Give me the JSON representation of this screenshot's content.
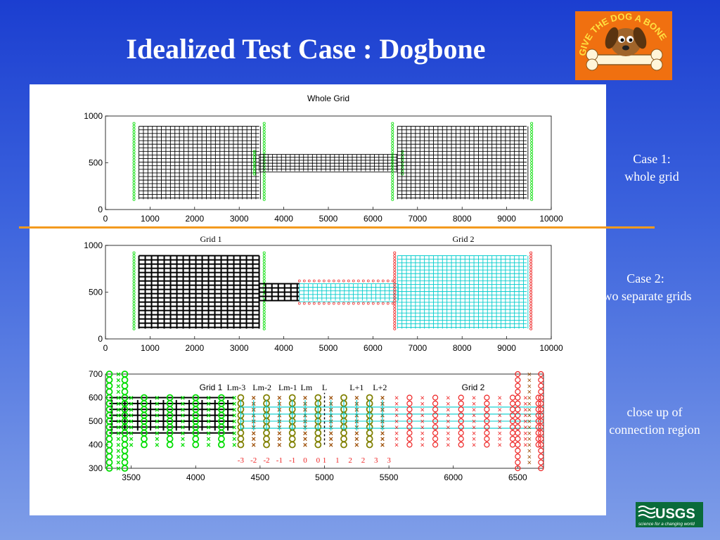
{
  "slide": {
    "title": "Idealized Test Case : Dogbone",
    "logo_text": "GIVE THE DOG A BONE",
    "usgs_text": "USGS",
    "usgs_tagline": "science for a changing world"
  },
  "notes": {
    "case1_line1": "Case 1:",
    "case1_line2": "whole grid",
    "case2_line1": "Case 2:",
    "case2_line2": "two separate grids",
    "closeup_line1": "close up of",
    "closeup_line2": "connection region"
  },
  "colors": {
    "green": "#00dd00",
    "red": "#ee2222",
    "cyan": "#00cccc",
    "olive": "#808000",
    "black": "#000000",
    "divider": "#f39a1e",
    "brown": "#9a4a00"
  },
  "chart_data": [
    {
      "type": "diagram",
      "title": "Whole Grid",
      "xlim": [
        0,
        10000
      ],
      "ylim": [
        0,
        1000
      ],
      "xticks": [
        0,
        1000,
        2000,
        3000,
        4000,
        5000,
        6000,
        7000,
        8000,
        9000,
        10000
      ],
      "yticks": [
        0,
        500,
        1000
      ],
      "blocks": [
        {
          "grid": "whole",
          "x": [
            750,
            3450
          ],
          "y": [
            110,
            890
          ]
        },
        {
          "grid": "whole",
          "x": [
            3450,
            6550
          ],
          "y": [
            410,
            590
          ]
        },
        {
          "grid": "whole",
          "x": [
            6550,
            9450
          ],
          "y": [
            110,
            890
          ]
        }
      ]
    },
    {
      "type": "diagram",
      "xlim": [
        0,
        10000
      ],
      "ylim": [
        0,
        1000
      ],
      "xticks": [
        0,
        1000,
        2000,
        3000,
        4000,
        5000,
        6000,
        7000,
        8000,
        9000,
        10000
      ],
      "yticks": [
        0,
        500,
        1000
      ],
      "grid1_label": "Grid 1",
      "grid2_label": "Grid 2",
      "blocks": [
        {
          "grid": "grid1",
          "x": [
            750,
            3450
          ],
          "y": [
            110,
            890
          ]
        },
        {
          "grid": "grid1",
          "x": [
            3450,
            4350
          ],
          "y": [
            410,
            590
          ]
        },
        {
          "grid": "grid2",
          "x": [
            4350,
            6550
          ],
          "y": [
            410,
            590
          ]
        },
        {
          "grid": "grid2",
          "x": [
            6550,
            9450
          ],
          "y": [
            110,
            890
          ]
        }
      ]
    },
    {
      "type": "diagram",
      "xlim": [
        3300,
        6700
      ],
      "ylim": [
        300,
        700
      ],
      "xticks": [
        3500,
        4000,
        4500,
        5000,
        5500,
        6000,
        6500
      ],
      "yticks": [
        300,
        400,
        500,
        600,
        700
      ],
      "grid1_label": "Grid 1",
      "grid2_label": "Grid 2",
      "column_labels": [
        "Lm-3",
        "Lm-2",
        "Lm-1",
        "Lm",
        "L",
        "L+1",
        "L+2"
      ],
      "index_labels": [
        "-3",
        "-2",
        "-2",
        "-1",
        "-1",
        "0",
        "0",
        "1",
        "1",
        "2",
        "2",
        "3",
        "3"
      ]
    }
  ]
}
